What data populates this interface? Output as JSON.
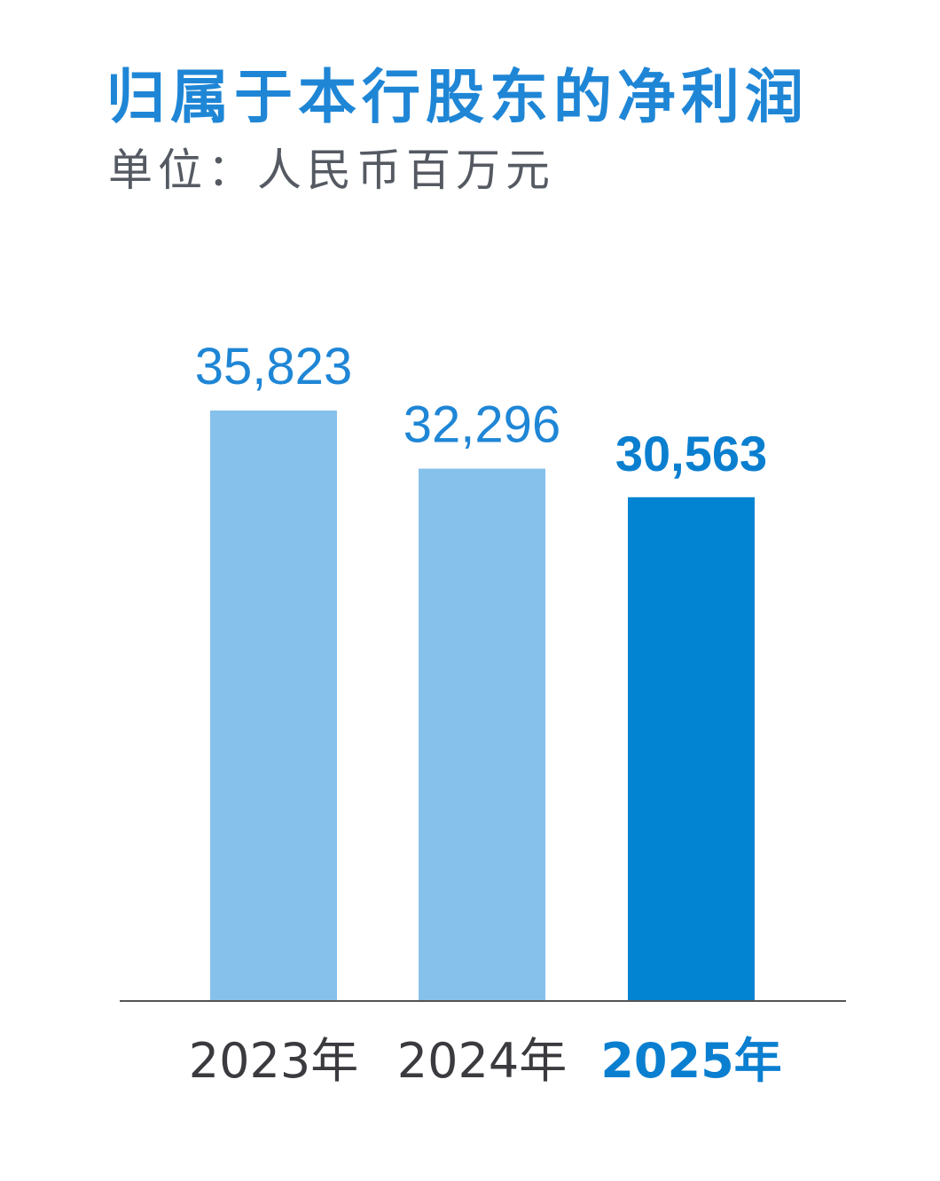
{
  "chart_data": {
    "type": "bar",
    "title": "归属于本行股东的净利润",
    "subtitle": "单位：人民币百万元",
    "categories": [
      "2023年",
      "2024年",
      "2025年"
    ],
    "values": [
      35823,
      32296,
      30563
    ],
    "value_labels": [
      "35,823",
      "32,296",
      "30,563"
    ],
    "highlight_index": 2,
    "xlabel": "",
    "ylabel": "",
    "grid": false,
    "legend": "none",
    "colors": {
      "bar": "#86c1ec",
      "bar_highlight": "#0284d2",
      "value_label": "#1f86d6",
      "value_label_highlight": "#0a7fd0",
      "category_label": "#3a3a3f",
      "category_label_highlight": "#0a7fd0",
      "baseline": "#555555"
    }
  }
}
